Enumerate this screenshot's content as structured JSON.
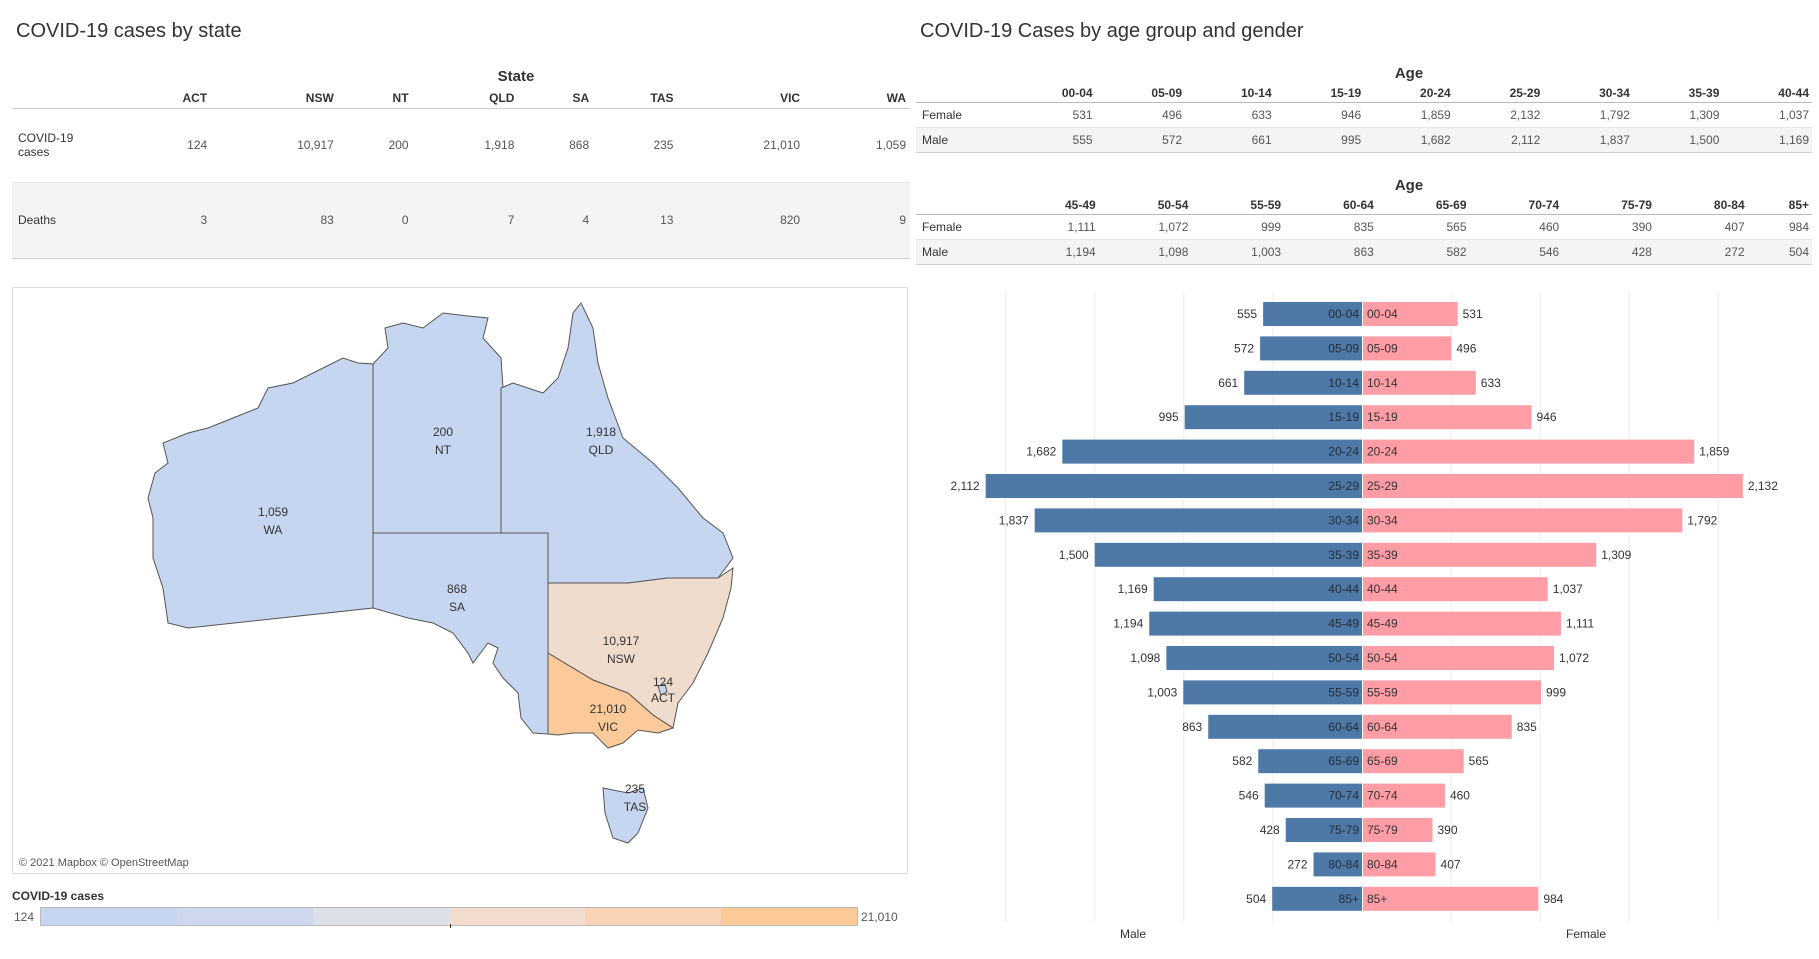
{
  "titles": {
    "left": "COVID-19 cases by state",
    "right": "COVID-19 Cases by age group and gender"
  },
  "state_table": {
    "group_header": "State",
    "columns": [
      "ACT",
      "NSW",
      "NT",
      "QLD",
      "SA",
      "TAS",
      "VIC",
      "WA"
    ],
    "rows": [
      {
        "label": "COVID-19 cases",
        "values": [
          "124",
          "10,917",
          "200",
          "1,918",
          "868",
          "235",
          "21,010",
          "1,059"
        ]
      },
      {
        "label": "Deaths",
        "values": [
          "3",
          "83",
          "0",
          "7",
          "4",
          "13",
          "820",
          "9"
        ]
      }
    ]
  },
  "age_tables": [
    {
      "group_header": "Age",
      "columns": [
        "00-04",
        "05-09",
        "10-14",
        "15-19",
        "20-24",
        "25-29",
        "30-34",
        "35-39",
        "40-44"
      ],
      "rows": [
        {
          "label": "Female",
          "values": [
            "531",
            "496",
            "633",
            "946",
            "1,859",
            "2,132",
            "1,792",
            "1,309",
            "1,037"
          ]
        },
        {
          "label": "Male",
          "values": [
            "555",
            "572",
            "661",
            "995",
            "1,682",
            "2,112",
            "1,837",
            "1,500",
            "1,169"
          ]
        }
      ]
    },
    {
      "group_header": "Age",
      "columns": [
        "45-49",
        "50-54",
        "55-59",
        "60-64",
        "65-69",
        "70-74",
        "75-79",
        "80-84",
        "85+"
      ],
      "rows": [
        {
          "label": "Female",
          "values": [
            "1,111",
            "1,072",
            "999",
            "835",
            "565",
            "460",
            "390",
            "407",
            "984"
          ]
        },
        {
          "label": "Male",
          "values": [
            "1,194",
            "1,098",
            "1,003",
            "863",
            "582",
            "546",
            "428",
            "272",
            "504"
          ]
        }
      ]
    }
  ],
  "map": {
    "credit": "© 2021 Mapbox © OpenStreetMap",
    "labels": [
      {
        "state": "WA",
        "value": "1,059"
      },
      {
        "state": "NT",
        "value": "200"
      },
      {
        "state": "QLD",
        "value": "1,918"
      },
      {
        "state": "SA",
        "value": "868"
      },
      {
        "state": "NSW",
        "value": "10,917"
      },
      {
        "state": "ACT",
        "value": "124"
      },
      {
        "state": "VIC",
        "value": "21,010"
      },
      {
        "state": "TAS",
        "value": "235"
      }
    ],
    "colors": {
      "low": "#c6d6f0",
      "mid": "#f0dccd",
      "high": "#fbc99a",
      "border": "#555555"
    }
  },
  "legend": {
    "title": "COVID-19 cases",
    "min": "124",
    "max": "21,010",
    "colors": [
      "#c6d6f0",
      "#cdd8ec",
      "#dde0e6",
      "#f1dccd",
      "#f8d3b5",
      "#fcc999"
    ]
  },
  "chart_data": {
    "type": "bar",
    "orientation": "horizontal-diverging",
    "categories": [
      "00-04",
      "05-09",
      "10-14",
      "15-19",
      "20-24",
      "25-29",
      "30-34",
      "35-39",
      "40-44",
      "45-49",
      "50-54",
      "55-59",
      "60-64",
      "65-69",
      "70-74",
      "75-79",
      "80-84",
      "85+"
    ],
    "series": [
      {
        "name": "Male",
        "color": "#4e79a7",
        "values": [
          555,
          572,
          661,
          995,
          1682,
          2112,
          1837,
          1500,
          1169,
          1194,
          1098,
          1003,
          863,
          582,
          546,
          428,
          272,
          504
        ]
      },
      {
        "name": "Female",
        "color": "#ff9da7",
        "values": [
          531,
          496,
          633,
          946,
          1859,
          2132,
          1792,
          1309,
          1037,
          1111,
          1072,
          999,
          835,
          565,
          460,
          390,
          407,
          984
        ]
      }
    ],
    "xlabel_left": "Male",
    "xlabel_right": "Female",
    "xlim": [
      0,
      2200
    ],
    "grid": true
  }
}
